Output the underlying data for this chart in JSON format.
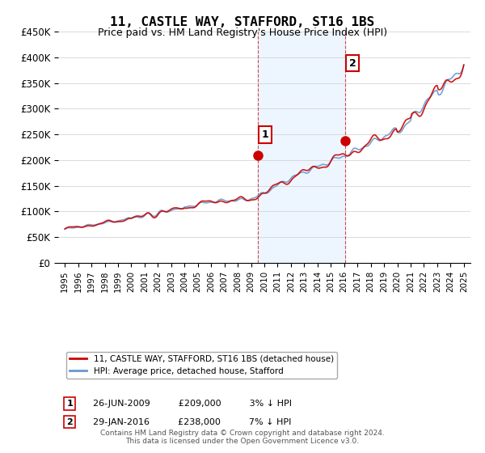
{
  "title": "11, CASTLE WAY, STAFFORD, ST16 1BS",
  "subtitle": "Price paid vs. HM Land Registry's House Price Index (HPI)",
  "footnote": "Contains HM Land Registry data © Crown copyright and database right 2024.\nThis data is licensed under the Open Government Licence v3.0.",
  "legend_entry1": "11, CASTLE WAY, STAFFORD, ST16 1BS (detached house)",
  "legend_entry2": "HPI: Average price, detached house, Stafford",
  "annotation1_label": "1",
  "annotation1_date": "26-JUN-2009",
  "annotation1_price": "£209,000",
  "annotation1_hpi": "3% ↓ HPI",
  "annotation2_label": "2",
  "annotation2_date": "29-JAN-2016",
  "annotation2_price": "£238,000",
  "annotation2_hpi": "7% ↓ HPI",
  "sale1_x": 2009.49,
  "sale1_y": 209000,
  "sale2_x": 2016.08,
  "sale2_y": 238000,
  "vline1_x": 2009.49,
  "vline2_x": 2016.08,
  "ylim": [
    0,
    450000
  ],
  "yticks": [
    0,
    50000,
    100000,
    150000,
    200000,
    250000,
    300000,
    350000,
    400000,
    450000
  ],
  "ytick_labels": [
    "£0",
    "£50K",
    "£100K",
    "£150K",
    "£200K",
    "£250K",
    "£300K",
    "£350K",
    "£400K",
    "£450K"
  ],
  "xlim": [
    1994.5,
    2025.5
  ],
  "xtick_years": [
    1995,
    1996,
    1997,
    1998,
    1999,
    2000,
    2001,
    2002,
    2003,
    2004,
    2005,
    2006,
    2007,
    2008,
    2009,
    2010,
    2011,
    2012,
    2013,
    2014,
    2015,
    2016,
    2017,
    2018,
    2019,
    2020,
    2021,
    2022,
    2023,
    2024,
    2025
  ],
  "color_sold": "#cc0000",
  "color_hpi": "#6699cc",
  "shaded_start": 2009.49,
  "shaded_end": 2016.08,
  "background_color": "#ffffff",
  "grid_color": "#cccccc"
}
